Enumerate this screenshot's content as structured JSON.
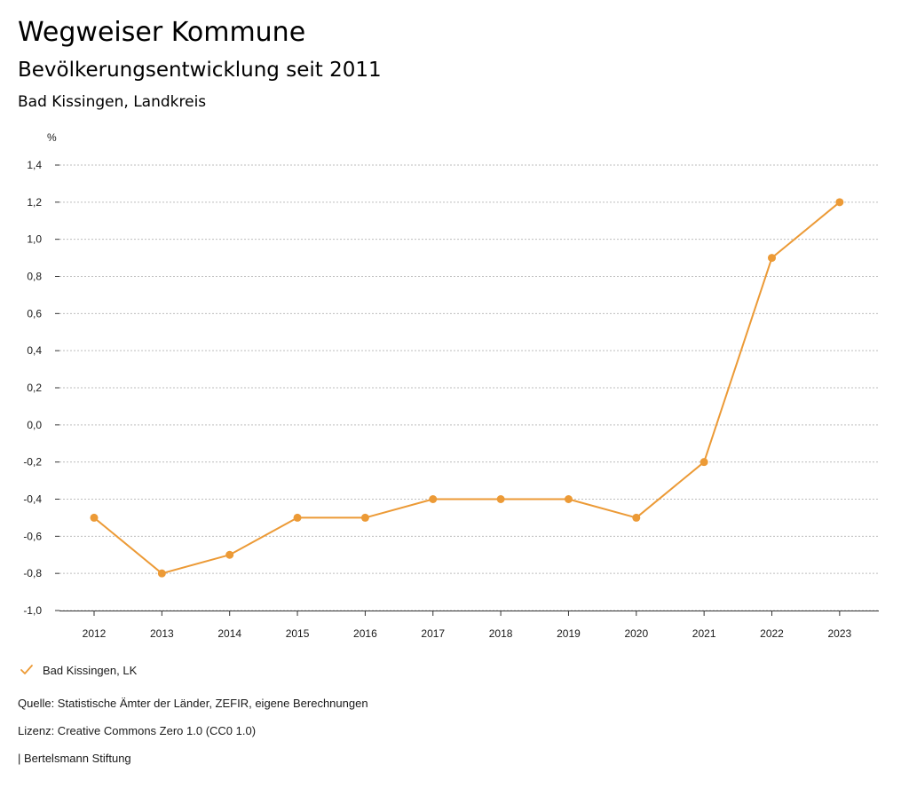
{
  "header": {
    "title": "Wegweiser Kommune",
    "subtitle": "Bevölkerungsentwicklung seit 2011",
    "region": "Bad Kissingen, Landkreis"
  },
  "chart_data": {
    "type": "line",
    "ylabel": "%",
    "xlabel": "",
    "categories": [
      "2012",
      "2013",
      "2014",
      "2015",
      "2016",
      "2017",
      "2018",
      "2019",
      "2020",
      "2021",
      "2022",
      "2023"
    ],
    "series": [
      {
        "name": "Bad Kissingen, LK",
        "values": [
          -0.5,
          -0.8,
          -0.7,
          -0.5,
          -0.5,
          -0.4,
          -0.4,
          -0.4,
          -0.5,
          -0.2,
          0.9,
          1.2
        ],
        "color": "#ec9a36"
      }
    ],
    "ylim": [
      -1.0,
      1.4
    ],
    "yticks": [
      -1.0,
      -0.8,
      -0.6,
      -0.4,
      -0.2,
      0.0,
      0.2,
      0.4,
      0.6,
      0.8,
      1.0,
      1.2,
      1.4
    ],
    "ytick_labels": [
      "-1,0",
      "-0,8",
      "-0,6",
      "-0,4",
      "-0,2",
      "0,0",
      "0,2",
      "0,4",
      "0,6",
      "0,8",
      "1,0",
      "1,2",
      "1,4"
    ],
    "grid": true,
    "legend": "bottom-left"
  },
  "footer": {
    "source": "Quelle: Statistische Ämter der Länder, ZEFIR, eigene Berechnungen",
    "license": "Lizenz: Creative Commons Zero 1.0 (CC0 1.0)",
    "brand": "| Bertelsmann Stiftung"
  },
  "colors": {
    "series": "#ec9a36",
    "grid": "#bdbdbd",
    "axis": "#333333"
  }
}
